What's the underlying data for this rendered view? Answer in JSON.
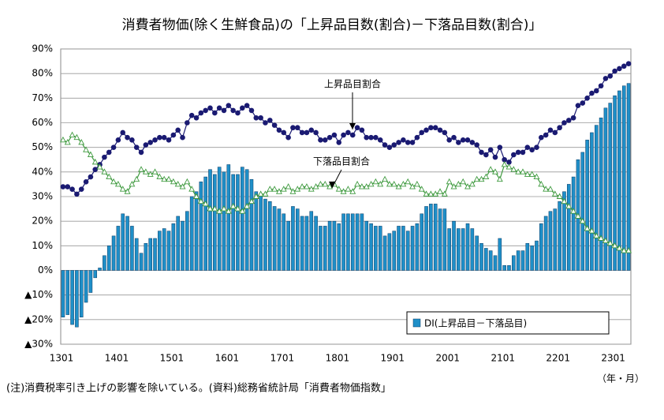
{
  "chart_data": {
    "type": "bar-line",
    "title": "消費者物価(除く生鮮食品)の「上昇品目数(割合)－下落品目数(割合)」",
    "footnote": "(注)消費税率引き上げの影響を除いている。(資料)総務省統計局「消費者物価指数」",
    "x_label": "（年・月）",
    "categories": [
      "1301",
      null,
      null,
      null,
      null,
      null,
      null,
      null,
      null,
      null,
      null,
      null,
      "1401",
      null,
      null,
      null,
      null,
      null,
      null,
      null,
      null,
      null,
      null,
      null,
      "1501",
      null,
      null,
      null,
      null,
      null,
      null,
      null,
      null,
      null,
      null,
      null,
      "1601",
      null,
      null,
      null,
      null,
      null,
      null,
      null,
      null,
      null,
      null,
      null,
      "1701",
      null,
      null,
      null,
      null,
      null,
      null,
      null,
      null,
      null,
      null,
      null,
      "1801",
      null,
      null,
      null,
      null,
      null,
      null,
      null,
      null,
      null,
      null,
      null,
      "1901",
      null,
      null,
      null,
      null,
      null,
      null,
      null,
      null,
      null,
      null,
      null,
      "2001",
      null,
      null,
      null,
      null,
      null,
      null,
      null,
      null,
      null,
      null,
      null,
      "2101",
      null,
      null,
      null,
      null,
      null,
      null,
      null,
      null,
      null,
      null,
      null,
      "2201",
      null,
      null,
      null,
      null,
      null,
      null,
      null,
      null,
      null,
      null,
      null,
      "2301",
      null,
      null,
      null
    ],
    "series": [
      {
        "name": "DI(上昇品目－下落品目)",
        "kind": "bar",
        "color": "#1f8fc8",
        "values": [
          -19,
          -18,
          -22,
          -23,
          -19,
          -13,
          -9,
          -3,
          1,
          6,
          10,
          14,
          18,
          23,
          22,
          18,
          13,
          7,
          11,
          13,
          13,
          16,
          17,
          16,
          19,
          22,
          20,
          24,
          30,
          32,
          36,
          38,
          41,
          39,
          42,
          40,
          43,
          39,
          39,
          42,
          41,
          37,
          32,
          31,
          29,
          28,
          26,
          25,
          23,
          20,
          26,
          25,
          22,
          22,
          24,
          22,
          18,
          18,
          20,
          20,
          19,
          23,
          23,
          23,
          23,
          23,
          20,
          19,
          18,
          18,
          14,
          15,
          16,
          18,
          18,
          16,
          18,
          19,
          23,
          26,
          27,
          27,
          25,
          25,
          17,
          20,
          17,
          17,
          19,
          17,
          14,
          11,
          9,
          8,
          6,
          13,
          2,
          2,
          6,
          8,
          8,
          11,
          10,
          12,
          19,
          22,
          24,
          25,
          28,
          32,
          35,
          38,
          45,
          48,
          53,
          56,
          59,
          62,
          66,
          68,
          71,
          73,
          75,
          76
        ]
      },
      {
        "name": "上昇品目割合",
        "kind": "line",
        "marker": "circle",
        "color": "#1a1a72",
        "values": [
          34,
          34,
          33,
          31,
          33,
          36,
          38,
          41,
          43,
          46,
          48,
          50,
          53,
          56,
          54,
          53,
          50,
          48,
          51,
          52,
          53,
          54,
          54,
          53,
          55,
          57,
          54,
          60,
          63,
          62,
          64,
          65,
          66,
          64,
          66,
          65,
          67,
          65,
          64,
          66,
          67,
          65,
          62,
          62,
          60,
          61,
          59,
          57,
          56,
          54,
          58,
          58,
          56,
          56,
          57,
          56,
          53,
          53,
          54,
          55,
          52,
          55,
          56,
          55,
          58,
          57,
          54,
          54,
          54,
          53,
          51,
          50,
          51,
          52,
          53,
          52,
          52,
          54,
          56,
          57,
          58,
          58,
          57,
          56,
          53,
          54,
          52,
          53,
          53,
          52,
          51,
          48,
          47,
          49,
          46,
          50,
          45,
          44,
          47,
          48,
          48,
          50,
          49,
          50,
          54,
          55,
          57,
          56,
          58,
          60,
          61,
          62,
          67,
          68,
          70,
          72,
          73,
          75,
          78,
          79,
          81,
          82,
          83,
          84
        ]
      },
      {
        "name": "下落品目割合",
        "kind": "line",
        "marker": "triangle",
        "color": "#3f9a3f",
        "values": [
          53,
          52,
          55,
          54,
          52,
          49,
          47,
          44,
          42,
          40,
          38,
          36,
          35,
          33,
          32,
          35,
          37,
          41,
          40,
          39,
          40,
          38,
          37,
          37,
          36,
          35,
          34,
          36,
          33,
          30,
          28,
          27,
          25,
          25,
          24,
          25,
          24,
          26,
          25,
          24,
          26,
          28,
          30,
          31,
          31,
          33,
          33,
          32,
          33,
          34,
          32,
          33,
          34,
          34,
          33,
          34,
          35,
          35,
          34,
          35,
          33,
          32,
          33,
          32,
          35,
          34,
          34,
          35,
          36,
          35,
          37,
          35,
          35,
          34,
          35,
          36,
          34,
          35,
          33,
          31,
          31,
          31,
          32,
          31,
          36,
          34,
          35,
          36,
          34,
          35,
          37,
          37,
          38,
          41,
          40,
          37,
          43,
          42,
          41,
          40,
          40,
          39,
          39,
          38,
          35,
          33,
          33,
          31,
          30,
          28,
          26,
          24,
          22,
          20,
          17,
          16,
          14,
          13,
          12,
          11,
          10,
          9,
          8,
          8
        ]
      }
    ],
    "ylim": [
      -30,
      90
    ],
    "yticks": [
      {
        "value": -30,
        "label": "▲30%"
      },
      {
        "value": -20,
        "label": "▲20%"
      },
      {
        "value": -10,
        "label": "▲10%"
      },
      {
        "value": 0,
        "label": "0%"
      },
      {
        "value": 10,
        "label": "10%"
      },
      {
        "value": 20,
        "label": "20%"
      },
      {
        "value": 30,
        "label": "30%"
      },
      {
        "value": 40,
        "label": "40%"
      },
      {
        "value": 50,
        "label": "50%"
      },
      {
        "value": 60,
        "label": "60%"
      },
      {
        "value": 70,
        "label": "70%"
      },
      {
        "value": 80,
        "label": "80%"
      },
      {
        "value": 90,
        "label": "90%"
      }
    ],
    "grid": true,
    "legend": "lower right"
  }
}
